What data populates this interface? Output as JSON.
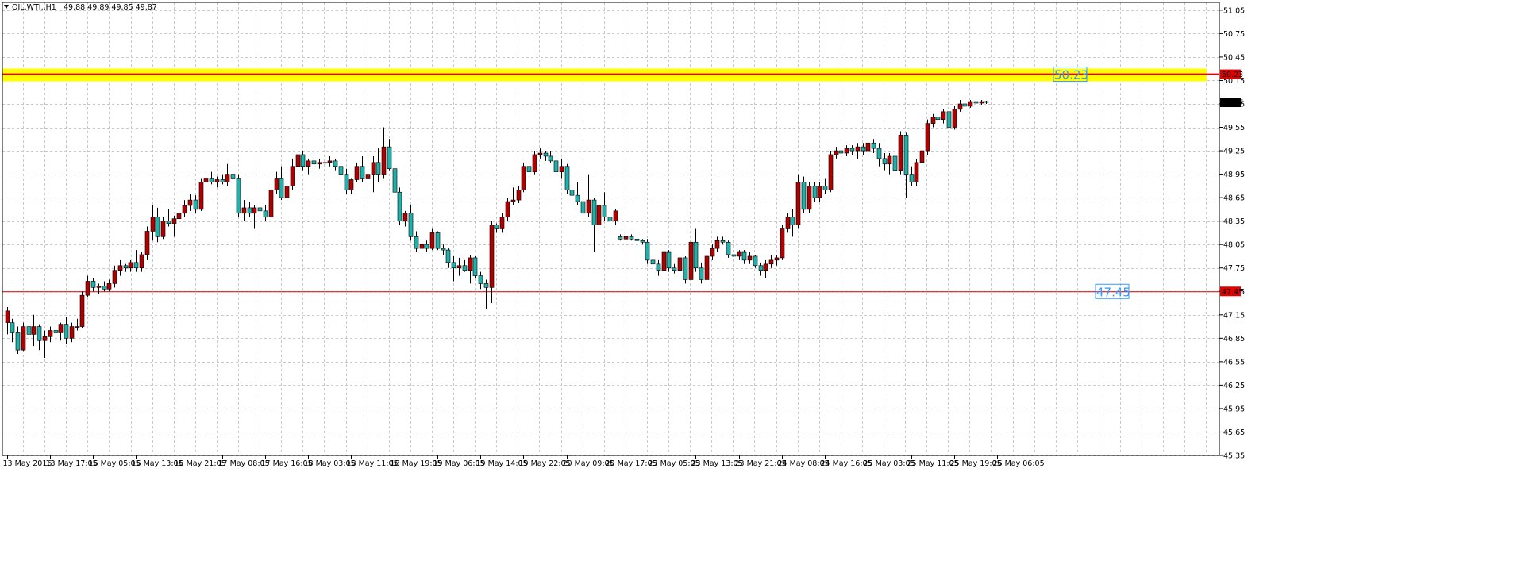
{
  "header": {
    "symbol": "OIL.WTI..H1",
    "ohlc": "49.88 49.89 49.85 49.87",
    "menu_icon": "triangle-down-icon"
  },
  "chart_data": {
    "type": "candlestick",
    "timeframe": "H1",
    "ylim": [
      45.35,
      51.15
    ],
    "y_ticks": [
      "51.05",
      "50.75",
      "50.45",
      "50.15",
      "49.85",
      "49.55",
      "49.25",
      "48.95",
      "48.65",
      "48.35",
      "48.05",
      "47.75",
      "47.45",
      "47.15",
      "46.85",
      "46.55",
      "46.25",
      "45.95",
      "45.65",
      "45.35"
    ],
    "x_ticks": [
      "13 May 2016",
      "13 May 17:05",
      "16 May 05:05",
      "16 May 13:05",
      "16 May 21:05",
      "17 May 08:05",
      "17 May 16:05",
      "18 May 03:05",
      "18 May 11:05",
      "18 May 19:05",
      "19 May 06:05",
      "19 May 14:05",
      "19 May 22:05",
      "20 May 09:05",
      "20 May 17:05",
      "23 May 05:05",
      "23 May 13:05",
      "23 May 21:05",
      "24 May 08:05",
      "24 May 16:05",
      "25 May 03:05",
      "25 May 11:05",
      "25 May 19:05",
      "26 May 06:05"
    ],
    "x_tick_bar_index": [
      0,
      8,
      16,
      24,
      32,
      40,
      48,
      56,
      64,
      72,
      80,
      88,
      96,
      104,
      112,
      120,
      128,
      136,
      144,
      152,
      160,
      168,
      176,
      184
    ],
    "grid": true,
    "candles": [
      {
        "o": 47.05,
        "h": 47.25,
        "l": 46.9,
        "c": 47.2
      },
      {
        "o": 47.05,
        "h": 47.1,
        "l": 46.8,
        "c": 46.92
      },
      {
        "o": 46.92,
        "h": 47.0,
        "l": 46.65,
        "c": 46.7
      },
      {
        "o": 46.7,
        "h": 47.05,
        "l": 46.68,
        "c": 47.0
      },
      {
        "o": 47.0,
        "h": 47.1,
        "l": 46.85,
        "c": 46.9
      },
      {
        "o": 46.9,
        "h": 47.15,
        "l": 46.75,
        "c": 47.0
      },
      {
        "o": 47.0,
        "h": 47.02,
        "l": 46.7,
        "c": 46.82
      },
      {
        "o": 46.82,
        "h": 46.95,
        "l": 46.6,
        "c": 46.87
      },
      {
        "o": 46.87,
        "h": 47.0,
        "l": 46.8,
        "c": 46.95
      },
      {
        "o": 46.95,
        "h": 47.1,
        "l": 46.85,
        "c": 46.92
      },
      {
        "o": 46.92,
        "h": 47.05,
        "l": 46.82,
        "c": 47.02
      },
      {
        "o": 47.02,
        "h": 47.12,
        "l": 46.78,
        "c": 46.85
      },
      {
        "o": 46.85,
        "h": 47.05,
        "l": 46.8,
        "c": 47.0
      },
      {
        "o": 47.0,
        "h": 47.1,
        "l": 46.95,
        "c": 47.0
      },
      {
        "o": 47.0,
        "h": 47.45,
        "l": 46.98,
        "c": 47.4
      },
      {
        "o": 47.4,
        "h": 47.65,
        "l": 47.38,
        "c": 47.58
      },
      {
        "o": 47.58,
        "h": 47.62,
        "l": 47.45,
        "c": 47.5
      },
      {
        "o": 47.5,
        "h": 47.55,
        "l": 47.42,
        "c": 47.52
      },
      {
        "o": 47.52,
        "h": 47.58,
        "l": 47.45,
        "c": 47.48
      },
      {
        "o": 47.48,
        "h": 47.6,
        "l": 47.45,
        "c": 47.55
      },
      {
        "o": 47.55,
        "h": 47.78,
        "l": 47.5,
        "c": 47.72
      },
      {
        "o": 47.72,
        "h": 47.85,
        "l": 47.65,
        "c": 47.78
      },
      {
        "o": 47.78,
        "h": 47.8,
        "l": 47.7,
        "c": 47.75
      },
      {
        "o": 47.75,
        "h": 47.85,
        "l": 47.7,
        "c": 47.82
      },
      {
        "o": 47.82,
        "h": 47.98,
        "l": 47.7,
        "c": 47.75
      },
      {
        "o": 47.75,
        "h": 47.95,
        "l": 47.7,
        "c": 47.92
      },
      {
        "o": 47.92,
        "h": 48.28,
        "l": 47.85,
        "c": 48.22
      },
      {
        "o": 48.22,
        "h": 48.55,
        "l": 48.1,
        "c": 48.4
      },
      {
        "o": 48.4,
        "h": 48.52,
        "l": 48.08,
        "c": 48.15
      },
      {
        "o": 48.15,
        "h": 48.4,
        "l": 48.12,
        "c": 48.35
      },
      {
        "o": 48.35,
        "h": 48.5,
        "l": 48.28,
        "c": 48.32
      },
      {
        "o": 48.32,
        "h": 48.42,
        "l": 48.15,
        "c": 48.38
      },
      {
        "o": 48.38,
        "h": 48.5,
        "l": 48.3,
        "c": 48.45
      },
      {
        "o": 48.45,
        "h": 48.62,
        "l": 48.4,
        "c": 48.55
      },
      {
        "o": 48.55,
        "h": 48.7,
        "l": 48.48,
        "c": 48.62
      },
      {
        "o": 48.62,
        "h": 48.68,
        "l": 48.45,
        "c": 48.5
      },
      {
        "o": 48.5,
        "h": 48.9,
        "l": 48.48,
        "c": 48.85
      },
      {
        "o": 48.85,
        "h": 48.95,
        "l": 48.8,
        "c": 48.9
      },
      {
        "o": 48.9,
        "h": 48.98,
        "l": 48.82,
        "c": 48.85
      },
      {
        "o": 48.85,
        "h": 48.92,
        "l": 48.78,
        "c": 48.88
      },
      {
        "o": 48.88,
        "h": 48.95,
        "l": 48.82,
        "c": 48.85
      },
      {
        "o": 48.85,
        "h": 49.08,
        "l": 48.8,
        "c": 48.95
      },
      {
        "o": 48.95,
        "h": 49.0,
        "l": 48.85,
        "c": 48.9
      },
      {
        "o": 48.9,
        "h": 48.95,
        "l": 48.4,
        "c": 48.45
      },
      {
        "o": 48.45,
        "h": 48.62,
        "l": 48.35,
        "c": 48.52
      },
      {
        "o": 48.52,
        "h": 48.6,
        "l": 48.4,
        "c": 48.45
      },
      {
        "o": 48.45,
        "h": 48.55,
        "l": 48.25,
        "c": 48.52
      },
      {
        "o": 48.52,
        "h": 48.58,
        "l": 48.38,
        "c": 48.48
      },
      {
        "o": 48.48,
        "h": 48.55,
        "l": 48.35,
        "c": 48.4
      },
      {
        "o": 48.4,
        "h": 48.78,
        "l": 48.38,
        "c": 48.75
      },
      {
        "o": 48.75,
        "h": 48.98,
        "l": 48.7,
        "c": 48.9
      },
      {
        "o": 48.9,
        "h": 49.05,
        "l": 48.62,
        "c": 48.65
      },
      {
        "o": 48.65,
        "h": 48.85,
        "l": 48.58,
        "c": 48.8
      },
      {
        "o": 48.8,
        "h": 49.15,
        "l": 48.75,
        "c": 49.05
      },
      {
        "o": 49.05,
        "h": 49.28,
        "l": 48.95,
        "c": 49.2
      },
      {
        "o": 49.2,
        "h": 49.25,
        "l": 49.0,
        "c": 49.05
      },
      {
        "o": 49.05,
        "h": 49.15,
        "l": 48.95,
        "c": 49.12
      },
      {
        "o": 49.12,
        "h": 49.18,
        "l": 49.05,
        "c": 49.08
      },
      {
        "o": 49.08,
        "h": 49.15,
        "l": 49.02,
        "c": 49.1
      },
      {
        "o": 49.1,
        "h": 49.15,
        "l": 49.05,
        "c": 49.1
      },
      {
        "o": 49.1,
        "h": 49.18,
        "l": 49.05,
        "c": 49.12
      },
      {
        "o": 49.12,
        "h": 49.15,
        "l": 49.0,
        "c": 49.05
      },
      {
        "o": 49.05,
        "h": 49.1,
        "l": 48.85,
        "c": 48.95
      },
      {
        "o": 48.95,
        "h": 49.02,
        "l": 48.7,
        "c": 48.75
      },
      {
        "o": 48.75,
        "h": 48.9,
        "l": 48.7,
        "c": 48.88
      },
      {
        "o": 48.88,
        "h": 49.1,
        "l": 48.85,
        "c": 49.05
      },
      {
        "o": 49.05,
        "h": 49.18,
        "l": 48.85,
        "c": 48.9
      },
      {
        "o": 48.9,
        "h": 49.0,
        "l": 48.75,
        "c": 48.95
      },
      {
        "o": 48.95,
        "h": 49.18,
        "l": 48.72,
        "c": 49.1
      },
      {
        "o": 49.1,
        "h": 49.28,
        "l": 48.85,
        "c": 48.95
      },
      {
        "o": 48.95,
        "h": 49.55,
        "l": 48.9,
        "c": 49.3
      },
      {
        "o": 49.3,
        "h": 49.4,
        "l": 49.0,
        "c": 49.02
      },
      {
        "o": 49.02,
        "h": 49.05,
        "l": 48.65,
        "c": 48.72
      },
      {
        "o": 48.72,
        "h": 48.78,
        "l": 48.3,
        "c": 48.35
      },
      {
        "o": 48.35,
        "h": 48.48,
        "l": 48.28,
        "c": 48.45
      },
      {
        "o": 48.45,
        "h": 48.55,
        "l": 48.1,
        "c": 48.15
      },
      {
        "o": 48.15,
        "h": 48.22,
        "l": 47.95,
        "c": 48.0
      },
      {
        "o": 48.0,
        "h": 48.15,
        "l": 47.92,
        "c": 48.05
      },
      {
        "o": 48.05,
        "h": 48.1,
        "l": 47.95,
        "c": 48.0
      },
      {
        "o": 48.0,
        "h": 48.25,
        "l": 47.98,
        "c": 48.2
      },
      {
        "o": 48.2,
        "h": 48.22,
        "l": 47.98,
        "c": 48.0
      },
      {
        "o": 48.0,
        "h": 48.05,
        "l": 47.92,
        "c": 47.98
      },
      {
        "o": 47.98,
        "h": 48.0,
        "l": 47.75,
        "c": 47.82
      },
      {
        "o": 47.82,
        "h": 47.9,
        "l": 47.58,
        "c": 47.75
      },
      {
        "o": 47.75,
        "h": 47.88,
        "l": 47.65,
        "c": 47.78
      },
      {
        "o": 47.78,
        "h": 47.85,
        "l": 47.7,
        "c": 47.72
      },
      {
        "o": 47.72,
        "h": 47.92,
        "l": 47.55,
        "c": 47.88
      },
      {
        "o": 47.88,
        "h": 47.9,
        "l": 47.62,
        "c": 47.65
      },
      {
        "o": 47.65,
        "h": 47.7,
        "l": 47.48,
        "c": 47.55
      },
      {
        "o": 47.55,
        "h": 47.6,
        "l": 47.22,
        "c": 47.5
      },
      {
        "o": 47.5,
        "h": 48.35,
        "l": 47.3,
        "c": 48.3
      },
      {
        "o": 48.3,
        "h": 48.32,
        "l": 48.2,
        "c": 48.25
      },
      {
        "o": 48.25,
        "h": 48.45,
        "l": 48.2,
        "c": 48.4
      },
      {
        "o": 48.4,
        "h": 48.65,
        "l": 48.35,
        "c": 48.6
      },
      {
        "o": 48.6,
        "h": 48.78,
        "l": 48.55,
        "c": 48.62
      },
      {
        "o": 48.62,
        "h": 48.8,
        "l": 48.58,
        "c": 48.75
      },
      {
        "o": 48.75,
        "h": 49.1,
        "l": 48.72,
        "c": 49.05
      },
      {
        "o": 49.05,
        "h": 49.12,
        "l": 48.92,
        "c": 48.98
      },
      {
        "o": 48.98,
        "h": 49.25,
        "l": 48.95,
        "c": 49.2
      },
      {
        "o": 49.2,
        "h": 49.28,
        "l": 49.15,
        "c": 49.22
      },
      {
        "o": 49.22,
        "h": 49.25,
        "l": 49.12,
        "c": 49.18
      },
      {
        "o": 49.18,
        "h": 49.25,
        "l": 49.1,
        "c": 49.12
      },
      {
        "o": 49.12,
        "h": 49.2,
        "l": 48.95,
        "c": 48.98
      },
      {
        "o": 48.98,
        "h": 49.15,
        "l": 48.9,
        "c": 49.05
      },
      {
        "o": 49.05,
        "h": 49.08,
        "l": 48.7,
        "c": 48.75
      },
      {
        "o": 48.75,
        "h": 48.85,
        "l": 48.62,
        "c": 48.68
      },
      {
        "o": 48.68,
        "h": 48.85,
        "l": 48.55,
        "c": 48.6
      },
      {
        "o": 48.6,
        "h": 48.72,
        "l": 48.35,
        "c": 48.45
      },
      {
        "o": 48.45,
        "h": 48.95,
        "l": 48.4,
        "c": 48.62
      },
      {
        "o": 48.62,
        "h": 48.65,
        "l": 47.95,
        "c": 48.3
      },
      {
        "o": 48.3,
        "h": 48.7,
        "l": 48.25,
        "c": 48.55
      },
      {
        "o": 48.55,
        "h": 48.72,
        "l": 48.35,
        "c": 48.4
      },
      {
        "o": 48.4,
        "h": 48.5,
        "l": 48.2,
        "c": 48.35
      },
      {
        "o": 48.35,
        "h": 48.5,
        "l": 48.3,
        "c": 48.48
      },
      {
        "o": 48.15,
        "h": 48.18,
        "l": 48.1,
        "c": 48.12
      },
      {
        "o": 48.12,
        "h": 48.18,
        "l": 48.1,
        "c": 48.15
      },
      {
        "o": 48.15,
        "h": 48.18,
        "l": 48.1,
        "c": 48.12
      },
      {
        "o": 48.12,
        "h": 48.15,
        "l": 48.08,
        "c": 48.1
      },
      {
        "o": 48.1,
        "h": 48.12,
        "l": 48.05,
        "c": 48.08
      },
      {
        "o": 48.08,
        "h": 48.12,
        "l": 47.8,
        "c": 47.85
      },
      {
        "o": 47.85,
        "h": 47.9,
        "l": 47.7,
        "c": 47.8
      },
      {
        "o": 47.8,
        "h": 47.85,
        "l": 47.65,
        "c": 47.72
      },
      {
        "o": 47.72,
        "h": 47.98,
        "l": 47.7,
        "c": 47.95
      },
      {
        "o": 47.95,
        "h": 47.98,
        "l": 47.7,
        "c": 47.75
      },
      {
        "o": 47.75,
        "h": 47.8,
        "l": 47.68,
        "c": 47.72
      },
      {
        "o": 47.72,
        "h": 47.92,
        "l": 47.65,
        "c": 47.88
      },
      {
        "o": 47.88,
        "h": 47.9,
        "l": 47.55,
        "c": 47.6
      },
      {
        "o": 47.6,
        "h": 48.18,
        "l": 47.4,
        "c": 48.08
      },
      {
        "o": 48.08,
        "h": 48.25,
        "l": 47.7,
        "c": 47.75
      },
      {
        "o": 47.75,
        "h": 47.82,
        "l": 47.55,
        "c": 47.6
      },
      {
        "o": 47.6,
        "h": 47.95,
        "l": 47.58,
        "c": 47.9
      },
      {
        "o": 47.9,
        "h": 48.05,
        "l": 47.85,
        "c": 48.0
      },
      {
        "o": 48.0,
        "h": 48.15,
        "l": 47.95,
        "c": 48.1
      },
      {
        "o": 48.1,
        "h": 48.15,
        "l": 48.05,
        "c": 48.08
      },
      {
        "o": 48.08,
        "h": 48.1,
        "l": 47.88,
        "c": 47.92
      },
      {
        "o": 47.92,
        "h": 47.98,
        "l": 47.85,
        "c": 47.9
      },
      {
        "o": 47.9,
        "h": 47.98,
        "l": 47.85,
        "c": 47.95
      },
      {
        "o": 47.95,
        "h": 47.98,
        "l": 47.8,
        "c": 47.85
      },
      {
        "o": 47.85,
        "h": 47.95,
        "l": 47.8,
        "c": 47.9
      },
      {
        "o": 47.9,
        "h": 47.92,
        "l": 47.75,
        "c": 47.78
      },
      {
        "o": 47.78,
        "h": 47.82,
        "l": 47.65,
        "c": 47.72
      },
      {
        "o": 47.72,
        "h": 47.85,
        "l": 47.62,
        "c": 47.8
      },
      {
        "o": 47.8,
        "h": 47.92,
        "l": 47.75,
        "c": 47.85
      },
      {
        "o": 47.85,
        "h": 47.92,
        "l": 47.78,
        "c": 47.88
      },
      {
        "o": 47.88,
        "h": 48.3,
        "l": 47.85,
        "c": 48.25
      },
      {
        "o": 48.25,
        "h": 48.45,
        "l": 48.2,
        "c": 48.4
      },
      {
        "o": 48.4,
        "h": 48.5,
        "l": 48.15,
        "c": 48.3
      },
      {
        "o": 48.3,
        "h": 48.95,
        "l": 48.25,
        "c": 48.85
      },
      {
        "o": 48.85,
        "h": 48.92,
        "l": 48.45,
        "c": 48.5
      },
      {
        "o": 48.5,
        "h": 48.85,
        "l": 48.45,
        "c": 48.8
      },
      {
        "o": 48.8,
        "h": 48.85,
        "l": 48.6,
        "c": 48.65
      },
      {
        "o": 48.65,
        "h": 48.85,
        "l": 48.6,
        "c": 48.8
      },
      {
        "o": 48.8,
        "h": 48.9,
        "l": 48.7,
        "c": 48.75
      },
      {
        "o": 48.75,
        "h": 49.25,
        "l": 48.72,
        "c": 49.2
      },
      {
        "o": 49.2,
        "h": 49.3,
        "l": 49.15,
        "c": 49.25
      },
      {
        "o": 49.25,
        "h": 49.3,
        "l": 49.18,
        "c": 49.22
      },
      {
        "o": 49.22,
        "h": 49.32,
        "l": 49.18,
        "c": 49.28
      },
      {
        "o": 49.28,
        "h": 49.32,
        "l": 49.2,
        "c": 49.25
      },
      {
        "o": 49.25,
        "h": 49.35,
        "l": 49.15,
        "c": 49.3
      },
      {
        "o": 49.3,
        "h": 49.35,
        "l": 49.2,
        "c": 49.25
      },
      {
        "o": 49.25,
        "h": 49.45,
        "l": 49.2,
        "c": 49.35
      },
      {
        "o": 49.35,
        "h": 49.4,
        "l": 49.22,
        "c": 49.28
      },
      {
        "o": 49.28,
        "h": 49.35,
        "l": 49.05,
        "c": 49.15
      },
      {
        "o": 49.15,
        "h": 49.22,
        "l": 49.0,
        "c": 49.08
      },
      {
        "o": 49.08,
        "h": 49.22,
        "l": 48.95,
        "c": 49.18
      },
      {
        "o": 49.18,
        "h": 49.22,
        "l": 48.95,
        "c": 49.0
      },
      {
        "o": 49.0,
        "h": 49.5,
        "l": 48.95,
        "c": 49.45
      },
      {
        "o": 49.45,
        "h": 49.48,
        "l": 48.65,
        "c": 48.95
      },
      {
        "o": 48.95,
        "h": 49.05,
        "l": 48.8,
        "c": 48.85
      },
      {
        "o": 48.85,
        "h": 49.15,
        "l": 48.8,
        "c": 49.1
      },
      {
        "o": 49.1,
        "h": 49.3,
        "l": 49.05,
        "c": 49.25
      },
      {
        "o": 49.25,
        "h": 49.65,
        "l": 49.2,
        "c": 49.6
      },
      {
        "o": 49.6,
        "h": 49.72,
        "l": 49.55,
        "c": 49.68
      },
      {
        "o": 49.68,
        "h": 49.72,
        "l": 49.6,
        "c": 49.65
      },
      {
        "o": 49.65,
        "h": 49.78,
        "l": 49.6,
        "c": 49.75
      },
      {
        "o": 49.75,
        "h": 49.8,
        "l": 49.5,
        "c": 49.55
      },
      {
        "o": 49.55,
        "h": 49.82,
        "l": 49.52,
        "c": 49.78
      },
      {
        "o": 49.78,
        "h": 49.9,
        "l": 49.75,
        "c": 49.85
      },
      {
        "o": 49.85,
        "h": 49.88,
        "l": 49.78,
        "c": 49.82
      },
      {
        "o": 49.82,
        "h": 49.9,
        "l": 49.8,
        "c": 49.88
      },
      {
        "o": 49.88,
        "h": 49.9,
        "l": 49.84,
        "c": 49.86
      },
      {
        "o": 49.86,
        "h": 49.9,
        "l": 49.84,
        "c": 49.88
      },
      {
        "o": 49.88,
        "h": 49.89,
        "l": 49.85,
        "c": 49.87
      }
    ],
    "horizontal_lines": [
      {
        "price": 50.23,
        "label": "50.23",
        "axis_label": "50.23",
        "color": "#e00000",
        "highlight": "#ffff00"
      },
      {
        "price": 47.45,
        "label": "47.45",
        "axis_label": "47.45",
        "color": "#e00000"
      }
    ],
    "current_price": {
      "value": 49.87,
      "label": "49.87"
    },
    "colors": {
      "bull": "#b00000",
      "bear": "#20b2aa",
      "wick": "#000000",
      "grid": "#c8c8c8",
      "background": "#ffffff",
      "level_text": "#3399ff"
    }
  }
}
